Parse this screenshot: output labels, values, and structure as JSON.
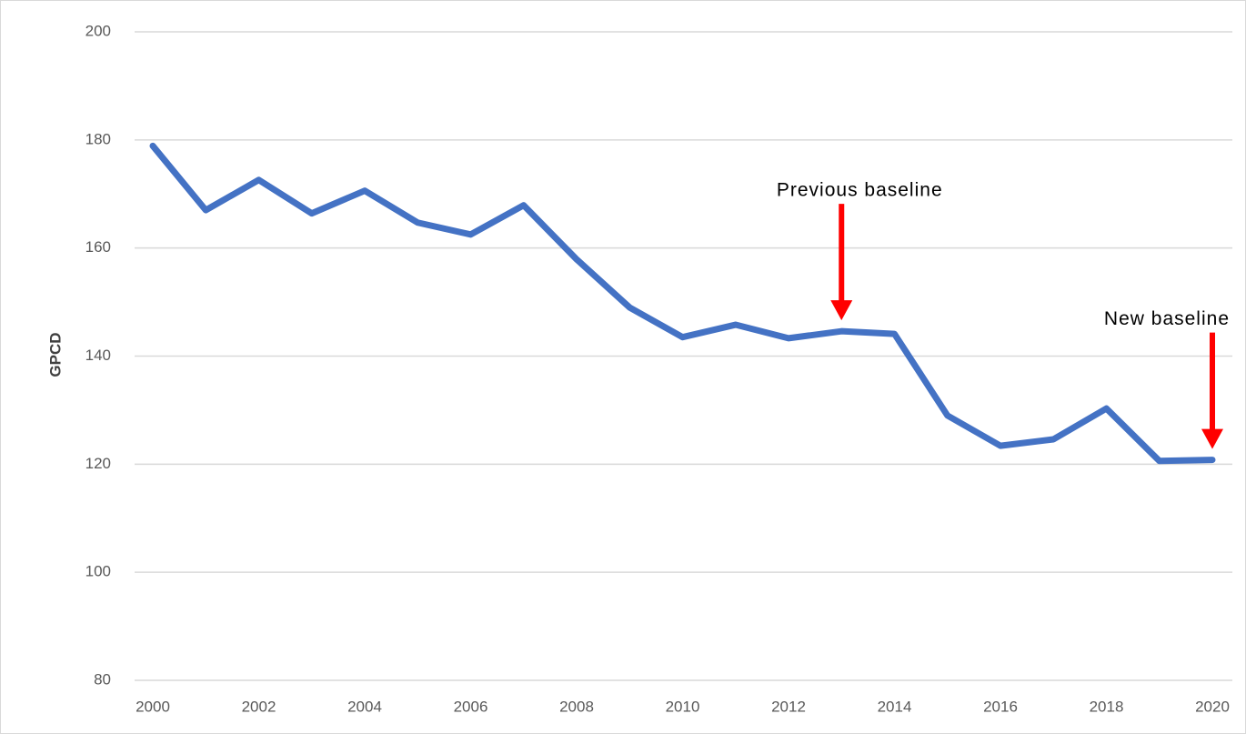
{
  "chart_data": {
    "type": "line",
    "y_label": "GPCD",
    "x": [
      2000,
      2001,
      2002,
      2003,
      2004,
      2005,
      2006,
      2007,
      2008,
      2009,
      2010,
      2011,
      2012,
      2013,
      2014,
      2015,
      2016,
      2017,
      2018,
      2019,
      2020
    ],
    "series": [
      {
        "name": "GPCD",
        "color": "#4472c4",
        "values": [
          178.9,
          167,
          172.6,
          166.4,
          170.6,
          164.7,
          162.5,
          167.9,
          157.9,
          149,
          143.5,
          145.8,
          143.3,
          144.6,
          144.1,
          129,
          123.4,
          124.6,
          130.3,
          120.6,
          120.8
        ]
      }
    ],
    "xlim": [
      2000,
      2020
    ],
    "xticks": [
      2000,
      2002,
      2004,
      2006,
      2008,
      2010,
      2012,
      2014,
      2016,
      2018,
      2020
    ],
    "ylim": [
      80,
      200
    ],
    "yticks": [
      80,
      100,
      120,
      140,
      160,
      180,
      200
    ],
    "grid": true,
    "annotations": [
      {
        "text": "Previous baseline",
        "x": 2013
      },
      {
        "text": "New baseline",
        "x": 2020
      }
    ],
    "annotation_color": "#ff0000"
  }
}
